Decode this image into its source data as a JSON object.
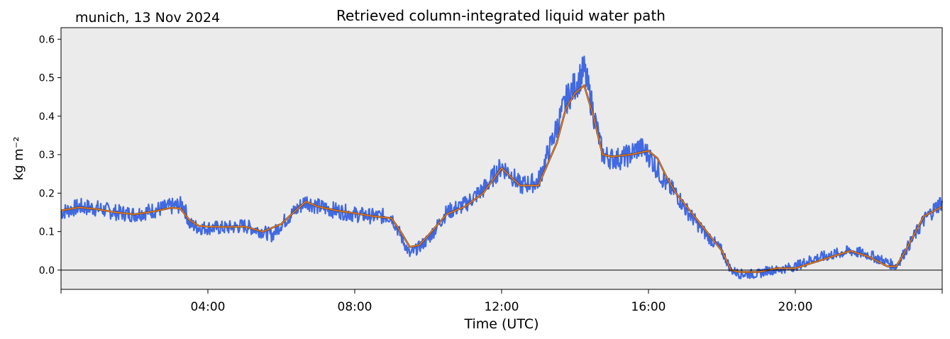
{
  "header": {
    "subtitle": "munich, 13 Nov 2024",
    "title": "Retrieved column-integrated liquid water path"
  },
  "chart_data": {
    "type": "line",
    "title": "Retrieved column-integrated liquid water path",
    "subtitle": "munich, 13 Nov 2024",
    "xlabel": "Time (UTC)",
    "ylabel": "kg m⁻²",
    "xlim": [
      "00:00",
      "24:00"
    ],
    "ylim": [
      -0.05,
      0.63
    ],
    "x_ticks": [
      "04:00",
      "08:00",
      "12:00",
      "16:00",
      "20:00"
    ],
    "y_ticks": [
      "0.0",
      "0.1",
      "0.2",
      "0.3",
      "0.4",
      "0.5",
      "0.6"
    ],
    "background_color": "#ebebeb",
    "zero_line": true,
    "series": [
      {
        "color": "#4169e1",
        "style": "dense raw retrieval points",
        "x": [
          "00:00",
          "00:30",
          "01:00",
          "01:30",
          "02:00",
          "02:30",
          "03:00",
          "03:20",
          "03:30",
          "03:45",
          "04:00",
          "04:30",
          "05:00",
          "05:30",
          "05:45",
          "06:00",
          "06:20",
          "06:40",
          "07:00",
          "07:30",
          "08:00",
          "08:30",
          "09:00",
          "09:15",
          "09:30",
          "09:45",
          "10:00",
          "10:30",
          "11:00",
          "11:30",
          "12:00",
          "12:15",
          "12:30",
          "13:00",
          "13:30",
          "13:45",
          "14:00",
          "14:15",
          "14:30",
          "14:45",
          "15:00",
          "15:15",
          "15:30",
          "15:45",
          "16:00",
          "16:15",
          "16:30",
          "16:45",
          "17:00",
          "17:30",
          "18:00",
          "18:15",
          "18:30",
          "19:00",
          "19:15",
          "19:30",
          "20:00",
          "20:30",
          "21:00",
          "21:30",
          "22:00",
          "22:30",
          "22:45",
          "23:00",
          "23:30",
          "24:00"
        ],
        "values": [
          0.15,
          0.165,
          0.16,
          0.15,
          0.145,
          0.155,
          0.165,
          0.17,
          0.12,
          0.11,
          0.11,
          0.11,
          0.115,
          0.1,
          0.09,
          0.12,
          0.15,
          0.18,
          0.165,
          0.155,
          0.145,
          0.14,
          0.14,
          0.09,
          0.04,
          0.06,
          0.08,
          0.15,
          0.17,
          0.21,
          0.27,
          0.25,
          0.22,
          0.23,
          0.37,
          0.44,
          0.48,
          0.52,
          0.41,
          0.3,
          0.29,
          0.29,
          0.3,
          0.32,
          0.3,
          0.26,
          0.22,
          0.2,
          0.16,
          0.1,
          0.05,
          0.0,
          -0.01,
          -0.01,
          0.0,
          0.0,
          0.01,
          0.03,
          0.04,
          0.05,
          0.04,
          0.02,
          0.01,
          0.05,
          0.13,
          0.18
        ]
      },
      {
        "color": "#f4892f",
        "style": "smoothed line",
        "x": [
          "00:00",
          "00:30",
          "01:00",
          "01:30",
          "02:00",
          "02:30",
          "03:00",
          "03:15",
          "03:30",
          "03:45",
          "04:00",
          "04:30",
          "05:00",
          "05:30",
          "06:00",
          "06:20",
          "06:40",
          "07:00",
          "07:30",
          "08:00",
          "08:30",
          "09:00",
          "09:15",
          "09:30",
          "09:45",
          "10:00",
          "10:30",
          "11:00",
          "11:30",
          "12:00",
          "12:30",
          "13:00",
          "13:30",
          "13:45",
          "14:00",
          "14:15",
          "14:30",
          "14:45",
          "15:00",
          "15:30",
          "16:00",
          "16:15",
          "16:30",
          "16:45",
          "17:00",
          "17:30",
          "18:00",
          "18:15",
          "18:30",
          "19:00",
          "19:30",
          "20:00",
          "20:30",
          "21:00",
          "21:30",
          "22:00",
          "22:30",
          "22:45",
          "23:00",
          "23:30",
          "24:00"
        ],
        "values": [
          0.155,
          0.163,
          0.158,
          0.15,
          0.145,
          0.152,
          0.162,
          0.16,
          0.13,
          0.115,
          0.113,
          0.112,
          0.113,
          0.1,
          0.12,
          0.15,
          0.178,
          0.165,
          0.155,
          0.148,
          0.14,
          0.135,
          0.1,
          0.06,
          0.065,
          0.09,
          0.145,
          0.165,
          0.2,
          0.265,
          0.22,
          0.22,
          0.33,
          0.42,
          0.46,
          0.48,
          0.4,
          0.3,
          0.295,
          0.3,
          0.31,
          0.29,
          0.24,
          0.2,
          0.17,
          0.11,
          0.05,
          0.0,
          -0.005,
          -0.005,
          0.005,
          0.005,
          0.02,
          0.035,
          0.05,
          0.035,
          0.01,
          0.01,
          0.05,
          0.14,
          0.165
        ]
      }
    ]
  }
}
